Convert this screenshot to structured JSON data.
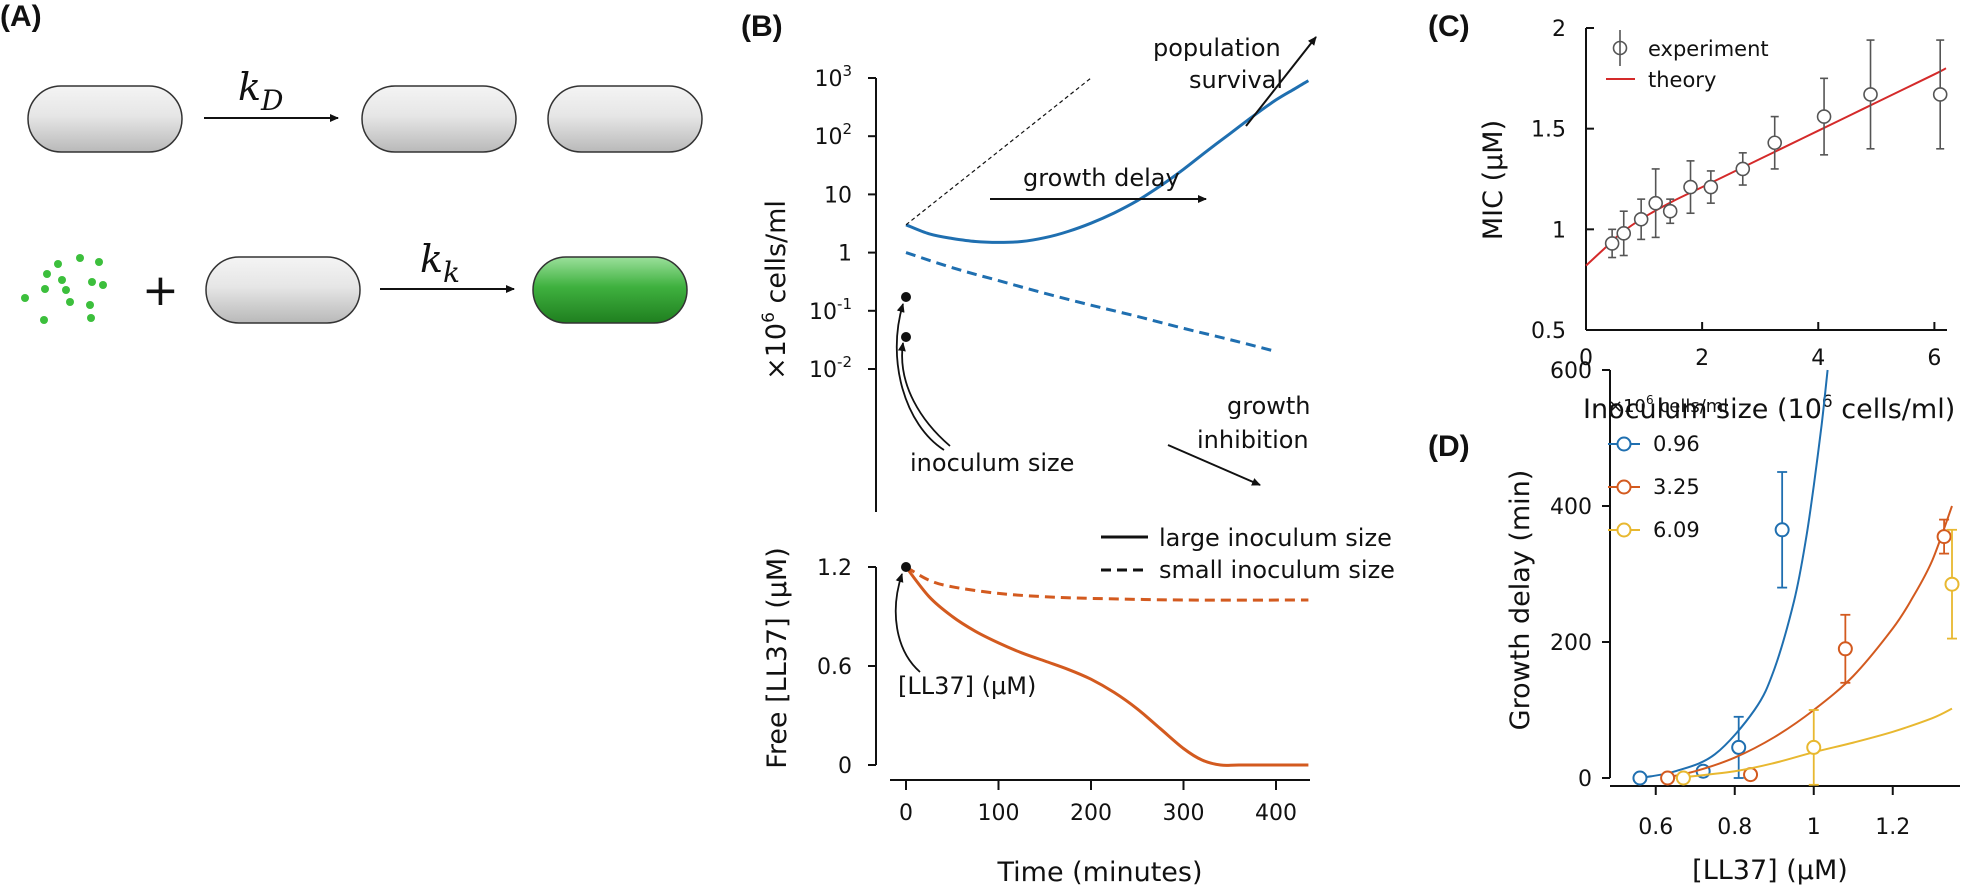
{
  "panels": {
    "A": "(A)",
    "B": "(B)",
    "C": "(C)",
    "D": "(D)"
  },
  "panel_a": {
    "rate_division": "k_D",
    "rate_division_main": "k",
    "rate_division_sub": "D",
    "rate_killing_main": "k",
    "rate_killing_sub": "k",
    "plus": "+",
    "colors": {
      "cell": "#d4d4d4",
      "killed": "#3fb13f",
      "peptide": "#3cbf3c"
    }
  },
  "chart_data": [
    {
      "id": "B-top",
      "type": "line",
      "ylabel": "×10⁶ cells/ml",
      "ylabel_pre": "×10",
      "ylabel_sup": "6",
      "ylabel_post": " cells/ml",
      "yscale": "log",
      "ylim": [
        0.01,
        1000
      ],
      "xlim": [
        0,
        440
      ],
      "yticks": [
        {
          "v": 1000,
          "base": "10",
          "sup": "3"
        },
        {
          "v": 100,
          "base": "10",
          "sup": "2"
        },
        {
          "v": 10,
          "base": "10",
          "sup": ""
        },
        {
          "v": 1,
          "base": "1",
          "sup": ""
        },
        {
          "v": 0.1,
          "base": "10",
          "sup": "-1"
        },
        {
          "v": 0.01,
          "base": "10",
          "sup": "-2"
        }
      ],
      "series": [
        {
          "style": "solid",
          "color": "#1f6fb0",
          "x": [
            0,
            25,
            50,
            75,
            100,
            125,
            150,
            175,
            200,
            225,
            250,
            275,
            300,
            325,
            350,
            375,
            400,
            420,
            435
          ],
          "y": [
            3,
            2.1,
            1.75,
            1.55,
            1.5,
            1.55,
            1.8,
            2.3,
            3.2,
            4.8,
            7.8,
            14,
            27,
            55,
            110,
            220,
            420,
            650,
            900
          ]
        },
        {
          "style": "dashed",
          "color": "#1f6fb0",
          "x": [
            0,
            50,
            100,
            150,
            200,
            250,
            300,
            350,
            400
          ],
          "y": [
            1,
            0.55,
            0.33,
            0.2,
            0.125,
            0.08,
            0.05,
            0.032,
            0.02
          ]
        },
        {
          "style": "dotted",
          "color": "#111111",
          "x": [
            0,
            200
          ],
          "y": [
            3,
            1000
          ]
        }
      ],
      "annotations": {
        "population_survival_1": "population",
        "population_survival_2": "survival",
        "growth_delay": "growth delay",
        "growth_inhibition_1": "growth",
        "growth_inhibition_2": "inhibition",
        "inoculum_size": "inoculum size"
      }
    },
    {
      "id": "B-bottom",
      "type": "line",
      "xlabel": "Time (minutes)",
      "ylabel": "Free [LL37] (μM)",
      "xlim": [
        0,
        440
      ],
      "ylim": [
        0,
        1.2
      ],
      "xticks": [
        0,
        100,
        200,
        300,
        400
      ],
      "yticks": [
        "0",
        "0.6",
        "1.2"
      ],
      "series": [
        {
          "name": "large inoculum size",
          "style": "solid",
          "color": "#d35a1f",
          "x": [
            0,
            25,
            50,
            75,
            100,
            125,
            150,
            175,
            200,
            225,
            250,
            275,
            300,
            320,
            340,
            360,
            400,
            435
          ],
          "y": [
            1.2,
            1.02,
            0.9,
            0.81,
            0.74,
            0.68,
            0.63,
            0.58,
            0.52,
            0.44,
            0.34,
            0.22,
            0.1,
            0.03,
            0.0,
            0.0,
            0.0,
            0.0
          ]
        },
        {
          "name": "small inoculum size",
          "style": "dashed",
          "color": "#d35a1f",
          "x": [
            0,
            25,
            50,
            100,
            150,
            200,
            300,
            435
          ],
          "y": [
            1.2,
            1.12,
            1.08,
            1.04,
            1.02,
            1.01,
            1.0,
            1.0
          ]
        }
      ],
      "annotations": {
        "ll37": "[LL37] (μM)"
      }
    },
    {
      "id": "C",
      "type": "scatter",
      "xlabel": "Inoculum size (10⁶ cells/ml)",
      "xlabel_pre": "Inoculum size (10",
      "xlabel_sup": "6",
      "xlabel_post": " cells/ml)",
      "ylabel": "MIC (μM)",
      "xlim": [
        0,
        6.2
      ],
      "ylim": [
        0.5,
        2
      ],
      "xticks": [
        "0",
        "2",
        "4",
        "6"
      ],
      "yticks": [
        "0.5",
        "1",
        "1.5",
        "2"
      ],
      "legend": [
        "experiment",
        "theory"
      ],
      "experiment": {
        "x": [
          0.45,
          0.65,
          0.95,
          1.2,
          1.45,
          1.8,
          2.15,
          2.7,
          3.25,
          4.1,
          4.9,
          6.1
        ],
        "y": [
          0.93,
          0.98,
          1.05,
          1.13,
          1.09,
          1.21,
          1.21,
          1.3,
          1.43,
          1.56,
          1.67,
          1.67
        ],
        "err": [
          0.07,
          0.11,
          0.1,
          0.17,
          0.06,
          0.13,
          0.08,
          0.08,
          0.13,
          0.19,
          0.27,
          0.27
        ]
      },
      "theory": {
        "color": "#d42a2a",
        "x": [
          0,
          0.3,
          0.6,
          1.0,
          1.5,
          2.0,
          2.5,
          3.0,
          3.5,
          4.0,
          4.5,
          5.0,
          5.5,
          6.0,
          6.2
        ],
        "y": [
          0.82,
          0.9,
          0.98,
          1.06,
          1.14,
          1.21,
          1.28,
          1.35,
          1.42,
          1.49,
          1.56,
          1.63,
          1.7,
          1.77,
          1.8
        ]
      }
    },
    {
      "id": "D",
      "type": "scatter",
      "xlabel": "[LL37] (μM)",
      "ylabel": "Growth delay (min)",
      "xlim": [
        0.5,
        1.35
      ],
      "ylim": [
        0,
        600
      ],
      "xticks": [
        "0.6",
        "0.8",
        "1",
        "1.2"
      ],
      "yticks": [
        "0",
        "200",
        "400",
        "600"
      ],
      "legend_title": "×10⁶ cells/ml",
      "legend_title_pre": "×10",
      "legend_title_sup": "6",
      "legend_title_post": " cells/ml",
      "series": [
        {
          "name": "0.96",
          "color": "#1f6fb0",
          "x": [
            0.56,
            0.72,
            0.81,
            0.92
          ],
          "y": [
            0,
            10,
            45,
            365
          ],
          "err": [
            0,
            0,
            45,
            85
          ],
          "curve_x": [
            0.56,
            0.65,
            0.75,
            0.85,
            0.9,
            0.95,
            0.98,
            1.0,
            1.02,
            1.035
          ],
          "curve_y": [
            0,
            10,
            35,
            100,
            160,
            260,
            350,
            430,
            520,
            600
          ]
        },
        {
          "name": "3.25",
          "color": "#d35a1f",
          "x": [
            0.63,
            0.84,
            1.08,
            1.33
          ],
          "y": [
            0,
            5,
            190,
            355
          ],
          "err": [
            0,
            0,
            50,
            25
          ],
          "curve_x": [
            0.62,
            0.7,
            0.8,
            0.9,
            1.0,
            1.1,
            1.2,
            1.25,
            1.3,
            1.35
          ],
          "curve_y": [
            0,
            10,
            30,
            60,
            100,
            150,
            220,
            265,
            320,
            400
          ]
        },
        {
          "name": "6.09",
          "color": "#e8b830",
          "x": [
            0.67,
            1.0,
            1.35
          ],
          "y": [
            0,
            45,
            285
          ],
          "err": [
            0,
            55,
            80
          ],
          "curve_x": [
            0.65,
            0.8,
            0.9,
            1.0,
            1.1,
            1.2,
            1.3,
            1.35
          ],
          "curve_y": [
            0,
            10,
            22,
            38,
            52,
            68,
            88,
            102
          ]
        }
      ]
    }
  ]
}
